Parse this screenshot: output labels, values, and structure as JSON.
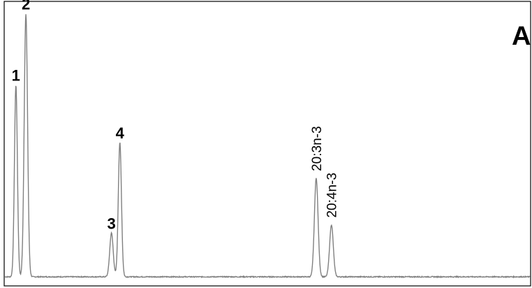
{
  "chart_data": {
    "type": "line",
    "panel_label": "A",
    "xlabel": "",
    "ylabel": "",
    "xlim": [
      0,
      100
    ],
    "ylim": [
      0,
      100
    ],
    "grid": false,
    "legend": "none",
    "colors": {
      "trace": "#808080",
      "frame": "#000000",
      "text": "#000000"
    },
    "peaks": [
      {
        "label": "1",
        "x": 2.1,
        "height": 70,
        "width": 0.28
      },
      {
        "label": "2",
        "x": 4.0,
        "height": 96,
        "width": 0.32
      },
      {
        "label": "3",
        "x": 20.3,
        "height": 16,
        "width": 0.33
      },
      {
        "label": "4",
        "x": 21.9,
        "height": 49,
        "width": 0.3
      },
      {
        "label": "20:3n-3",
        "x": 59.3,
        "height": 36,
        "width": 0.35
      },
      {
        "label": "20:4n-3",
        "x": 62.2,
        "height": 19,
        "width": 0.35
      }
    ]
  }
}
